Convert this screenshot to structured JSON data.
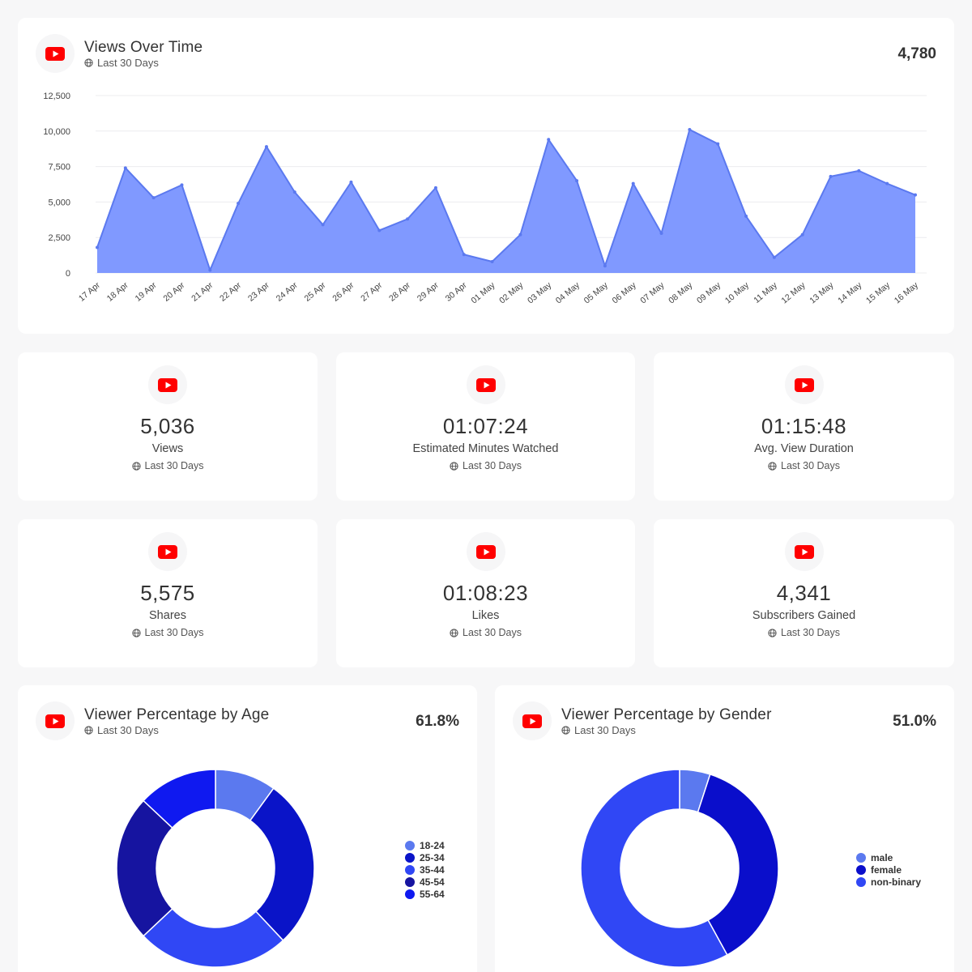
{
  "colors": {
    "youtube_red": "#ff0000",
    "area_fill": "#8099ff",
    "area_stroke": "#5b79ef"
  },
  "views_card": {
    "title": "Views Over Time",
    "subtitle": "Last 30 Days",
    "total": "4,780"
  },
  "stats": [
    {
      "value": "5,036",
      "label": "Views",
      "subtitle": "Last 30 Days"
    },
    {
      "value": "01:07:24",
      "label": "Estimated Minutes Watched",
      "subtitle": "Last 30 Days"
    },
    {
      "value": "01:15:48",
      "label": "Avg. View Duration",
      "subtitle": "Last 30 Days"
    },
    {
      "value": "5,575",
      "label": "Shares",
      "subtitle": "Last 30 Days"
    },
    {
      "value": "01:08:23",
      "label": "Likes",
      "subtitle": "Last 30 Days"
    },
    {
      "value": "4,341",
      "label": "Subscribers Gained",
      "subtitle": "Last 30 Days"
    }
  ],
  "age_card": {
    "title": "Viewer Percentage by Age",
    "subtitle": "Last 30 Days",
    "total": "61.8%"
  },
  "gender_card": {
    "title": "Viewer Percentage by Gender",
    "subtitle": "Last 30 Days",
    "total": "51.0%"
  },
  "chart_data": [
    {
      "type": "area",
      "title": "Views Over Time",
      "categories": [
        "17 Apr",
        "18 Apr",
        "19 Apr",
        "20 Apr",
        "21 Apr",
        "22 Apr",
        "23 Apr",
        "24 Apr",
        "25 Apr",
        "26 Apr",
        "27 Apr",
        "28 Apr",
        "29 Apr",
        "30 Apr",
        "01 May",
        "02 May",
        "03 May",
        "04 May",
        "05 May",
        "06 May",
        "07 May",
        "08 May",
        "09 May",
        "10 May",
        "11 May",
        "12 May",
        "13 May",
        "14 May",
        "15 May",
        "16 May"
      ],
      "series": [
        {
          "values": [
            1800,
            7400,
            5300,
            6200,
            200,
            4900,
            8900,
            5700,
            3400,
            6400,
            3000,
            3800,
            6000,
            1300,
            800,
            2700,
            9400,
            6500,
            500,
            6300,
            2800,
            10100,
            9100,
            4000,
            1100,
            2700,
            6800,
            7200,
            6300,
            5500
          ]
        }
      ],
      "ylim": [
        0,
        12500
      ],
      "yticks": [
        "0",
        "2,500",
        "5,000",
        "7,500",
        "10,000",
        "12,500"
      ],
      "grid": true
    },
    {
      "type": "pie",
      "title": "Viewer Percentage by Age",
      "labels": [
        "18-24",
        "25-34",
        "35-44",
        "45-54",
        "55-64"
      ],
      "values": [
        10,
        28,
        25,
        24,
        13
      ],
      "colors": [
        "#5b79ef",
        "#0a14c8",
        "#3047f5",
        "#1614a0",
        "#0f19f0"
      ],
      "legend": "right",
      "donut": true
    },
    {
      "type": "pie",
      "title": "Viewer Percentage by Gender",
      "labels": [
        "male",
        "female",
        "non-binary"
      ],
      "values": [
        5,
        37,
        58
      ],
      "colors": [
        "#5b79ef",
        "#0a0ecb",
        "#3047f5"
      ],
      "legend": "right",
      "donut": true
    }
  ]
}
